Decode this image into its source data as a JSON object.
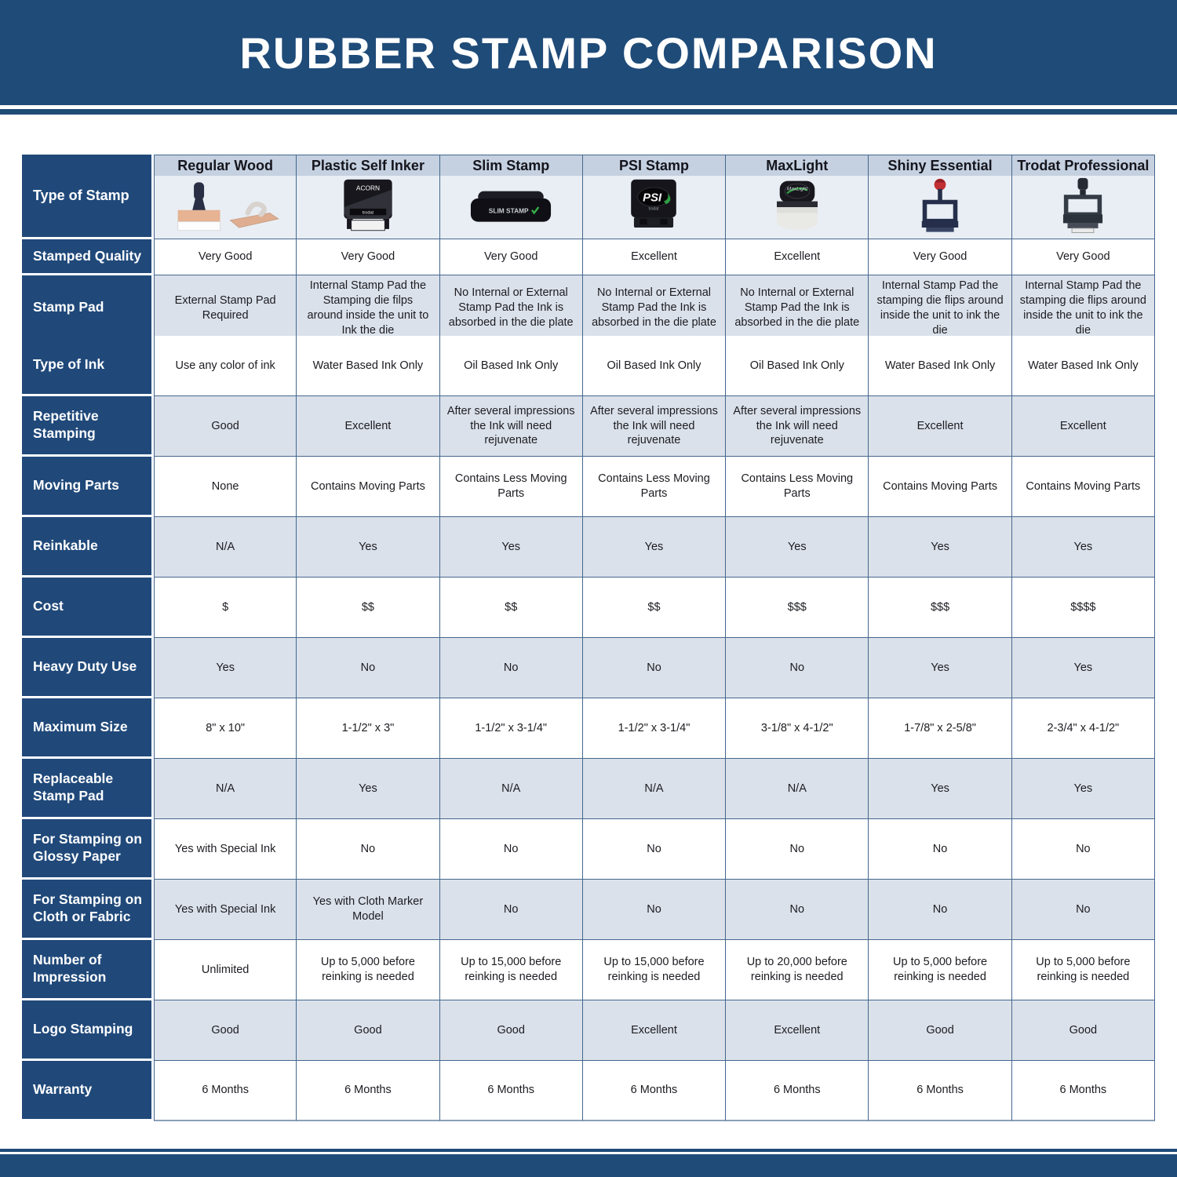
{
  "page_title": "RUBBER STAMP COMPARISON",
  "colors": {
    "banner_blue": "#1f4b78",
    "label_navy": "#20497a",
    "column_header_strip": "#c5d1e0",
    "alt_row_gray": "#dbe1ea",
    "image_row_bg": "#e9eef4",
    "grid_border_blue": "#44678e"
  },
  "table": {
    "corner_label": "Type of Stamp",
    "columns": [
      {
        "name": "Regular Wood",
        "icon": "regular-wood-stamp-icon"
      },
      {
        "name": "Plastic Self Inker",
        "icon": "plastic-self-inker-stamp-icon"
      },
      {
        "name": "Slim Stamp",
        "icon": "slim-stamp-icon"
      },
      {
        "name": "PSI Stamp",
        "icon": "psi-stamp-icon"
      },
      {
        "name": "MaxLight",
        "icon": "maxlight-stamp-icon"
      },
      {
        "name": "Shiny Essential",
        "icon": "shiny-essential-stamp-icon"
      },
      {
        "name": "Trodat Professional",
        "icon": "trodat-professional-stamp-icon"
      }
    ],
    "rows": [
      {
        "label": "Stamped Quality",
        "values": [
          "Very Good",
          "Very Good",
          "Very Good",
          "Excellent",
          "Excellent",
          "Very Good",
          "Very Good"
        ]
      },
      {
        "label": "Stamp Pad",
        "values": [
          "External Stamp Pad Required",
          "Internal Stamp Pad the Stamping die filps around inside the unit to Ink the die",
          "No Internal or External Stamp Pad the Ink is absorbed in the die plate",
          "No Internal or External Stamp Pad the Ink is absorbed in the die plate",
          "No Internal or External Stamp Pad the Ink is absorbed in the die plate",
          "Internal Stamp Pad the stamping die flips around inside the unit to ink the die",
          "Internal Stamp Pad the stamping die flips around inside the unit to ink the die"
        ]
      },
      {
        "label": "Type of Ink",
        "values": [
          "Use any color of ink",
          "Water Based Ink Only",
          "Oil Based Ink Only",
          "Oil Based Ink Only",
          "Oil Based Ink Only",
          "Water Based Ink Only",
          "Water Based Ink Only"
        ]
      },
      {
        "label": "Repetitive Stamping",
        "values": [
          "Good",
          "Excellent",
          "After several impressions the Ink will need rejuvenate",
          "After several impressions the Ink will need rejuvenate",
          "After several impressions the Ink will need rejuvenate",
          "Excellent",
          "Excellent"
        ]
      },
      {
        "label": "Moving Parts",
        "values": [
          "None",
          "Contains Moving Parts",
          "Contains Less Moving Parts",
          "Contains Less Moving Parts",
          "Contains Less Moving Parts",
          "Contains Moving Parts",
          "Contains Moving Parts"
        ]
      },
      {
        "label": "Reinkable",
        "values": [
          "N/A",
          "Yes",
          "Yes",
          "Yes",
          "Yes",
          "Yes",
          "Yes"
        ]
      },
      {
        "label": "Cost",
        "values": [
          "$",
          "$$",
          "$$",
          "$$",
          "$$$",
          "$$$",
          "$$$$"
        ]
      },
      {
        "label": "Heavy Duty Use",
        "values": [
          "Yes",
          "No",
          "No",
          "No",
          "No",
          "Yes",
          "Yes"
        ]
      },
      {
        "label": "Maximum Size",
        "values": [
          "8\" x 10\"",
          "1-1/2\" x 3\"",
          "1-1/2\" x 3-1/4\"",
          "1-1/2\" x 3-1/4\"",
          "3-1/8\" x 4-1/2\"",
          "1-7/8\" x 2-5/8\"",
          "2-3/4\" x 4-1/2\""
        ]
      },
      {
        "label": "Replaceable Stamp Pad",
        "values": [
          "N/A",
          "Yes",
          "N/A",
          "N/A",
          "N/A",
          "Yes",
          "Yes"
        ]
      },
      {
        "label": "For Stamping on Glossy Paper",
        "values": [
          "Yes with Special Ink",
          "No",
          "No",
          "No",
          "No",
          "No",
          "No"
        ]
      },
      {
        "label": "For Stamping on Cloth or Fabric",
        "values": [
          "Yes with Special Ink",
          "Yes with Cloth Marker Model",
          "No",
          "No",
          "No",
          "No",
          "No"
        ]
      },
      {
        "label": "Number of Impression",
        "values": [
          "Unlimited",
          "Up to 5,000 before reinking is needed",
          "Up to 15,000 before reinking is needed",
          "Up to 15,000 before reinking is needed",
          "Up to 20,000 before reinking is needed",
          "Up to 5,000 before reinking is needed",
          "Up to 5,000 before reinking is needed"
        ]
      },
      {
        "label": "Logo Stamping",
        "values": [
          "Good",
          "Good",
          "Good",
          "Excellent",
          "Excellent",
          "Good",
          "Good"
        ]
      },
      {
        "label": "Warranty",
        "values": [
          "6 Months",
          "6 Months",
          "6 Months",
          "6 Months",
          "6 Months",
          "6 Months",
          "6 Months"
        ]
      }
    ]
  }
}
